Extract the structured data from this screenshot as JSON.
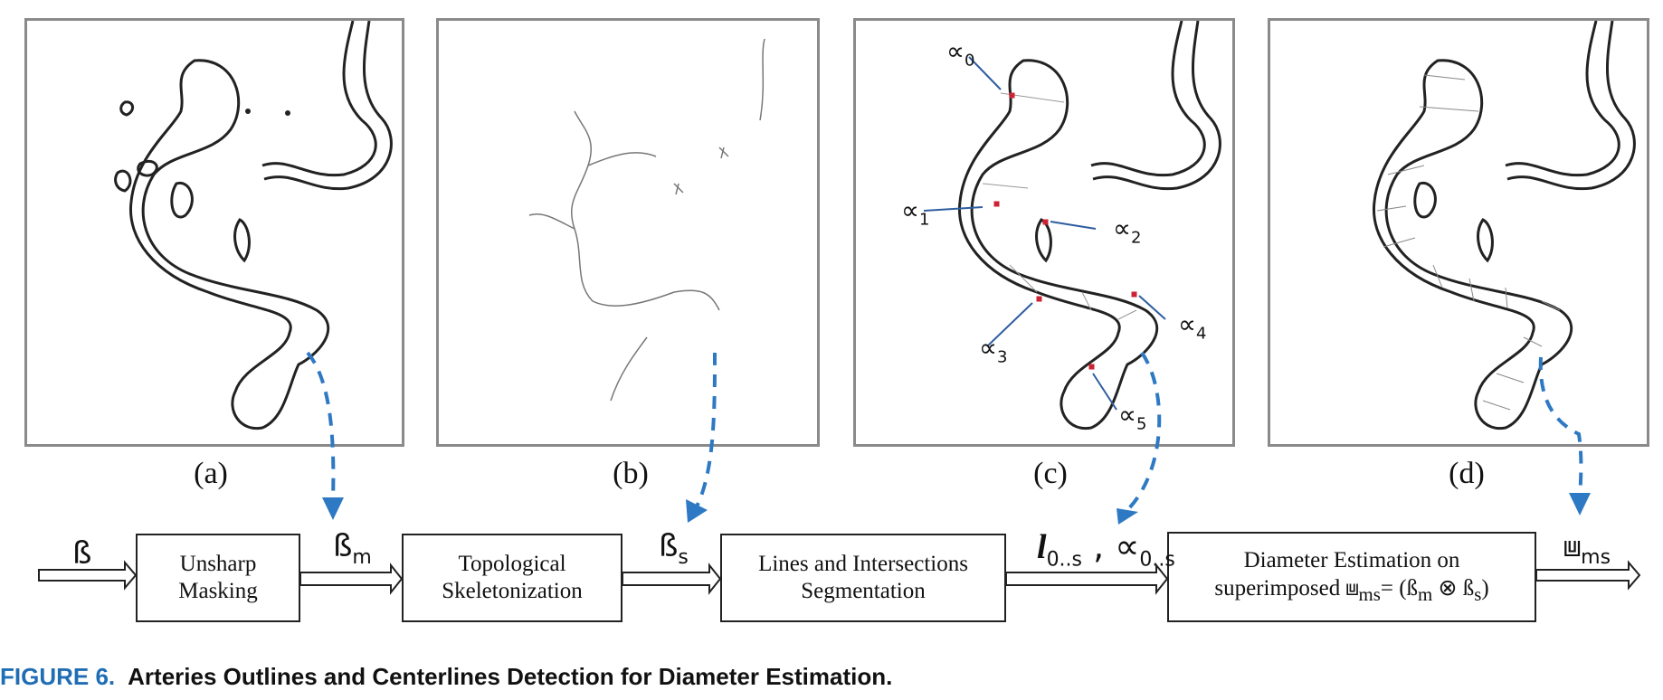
{
  "panels": [
    {
      "label": "(a)"
    },
    {
      "label": "(b)"
    },
    {
      "label": "(c)"
    },
    {
      "label": "(d)"
    }
  ],
  "alpha_markers": [
    {
      "sym": "∝",
      "sub": "0"
    },
    {
      "sym": "∝",
      "sub": "1"
    },
    {
      "sym": "∝",
      "sub": "2"
    },
    {
      "sym": "∝",
      "sub": "3"
    },
    {
      "sym": "∝",
      "sub": "4"
    },
    {
      "sym": "∝",
      "sub": "5"
    }
  ],
  "pipeline": {
    "input": {
      "sym": "ß",
      "sub": ""
    },
    "boxes": [
      {
        "line1": "Unsharp",
        "line2": "Masking"
      },
      {
        "line1": "Topological",
        "line2": "Skeletonization"
      },
      {
        "line1": "Lines and Intersections",
        "line2": "Segmentation"
      },
      {
        "line1": "Diameter Estimation on",
        "line2_pre": "superimposed ",
        "line2_sym": "⩏",
        "line2_sub": "ms",
        "line2_eq": "= (ß",
        "line2_sub2": "m",
        "line2_op": " ⊗ ß",
        "line2_sub3": "s",
        "line2_post": ")"
      }
    ],
    "arrow_labels": [
      {
        "sym": "ß",
        "sub": "m"
      },
      {
        "sym": "ß",
        "sub": "s"
      },
      {
        "sym": "l",
        "sub": "0..s",
        "sep": " , ",
        "sym2": "∝",
        "sub2": "0..s"
      },
      {
        "sym": "⩏",
        "sub": "ms"
      }
    ]
  },
  "caption": {
    "figure": "FIGURE 6.",
    "text": "Arteries Outlines and Centerlines Detection for Diameter Estimation."
  },
  "colors": {
    "accent": "#1f6db5",
    "arrow_blue": "#2e79c4",
    "panel_border": "#8a8a8a"
  }
}
